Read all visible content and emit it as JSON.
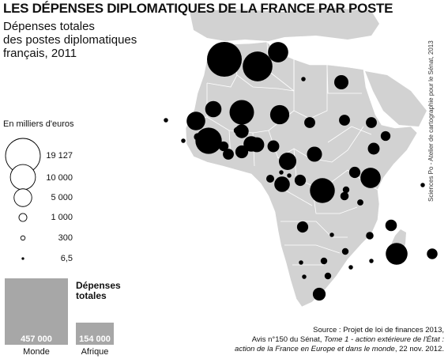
{
  "title": "LES DÉPENSES DIPLOMATIQUES DE LA FRANCE PAR POSTE",
  "subtitle": {
    "line1": "Dépenses totales",
    "line2": "des postes diplomatiques",
    "line3": "français,",
    "year": "2011"
  },
  "legend": {
    "unit_label": "En milliers d'euros",
    "items": [
      {
        "value": 19127,
        "label": "19 127"
      },
      {
        "value": 10000,
        "label": "10 000"
      },
      {
        "value": 5000,
        "label": "5 000"
      },
      {
        "value": 1000,
        "label": "1 000"
      },
      {
        "value": 300,
        "label": "300"
      },
      {
        "value": 6.5,
        "label": "6,5"
      }
    ]
  },
  "totals": {
    "heading_line1": "Dépenses",
    "heading_line2": "totales",
    "bars": [
      {
        "category": "Monde",
        "value": 457000,
        "label": "457 000"
      },
      {
        "category": "Afrique",
        "value": 154000,
        "label": "154 000"
      }
    ]
  },
  "credit": "Sciences Po - Atelier de cartographie pour le Sénat, 2013",
  "source": {
    "line1": "Source : Projet de loi de finances 2013,",
    "line2_plain": "Avis n°150 du Sénat, ",
    "line2_italic": "Tome 1 - action extérieure de l'État :",
    "line3_italic": "action de la France en Europe et dans le monde",
    "line3_plain": ", 22 nov. 2012."
  },
  "colors": {
    "land": "#d2d2d2",
    "borders": "#ffffff",
    "circles": "#000000",
    "bars": "#a7a7a7"
  },
  "map_symbols": [
    {
      "value": 19127
    },
    {
      "value": 14000
    },
    {
      "value": 6500
    },
    {
      "value": 300
    },
    {
      "value": 3200
    },
    {
      "value": 300
    },
    {
      "value": 4200
    },
    {
      "value": 9500
    },
    {
      "value": 5500
    },
    {
      "value": 3000
    },
    {
      "value": 5800
    },
    {
      "value": 850
    },
    {
      "value": 300
    },
    {
      "value": 11000
    },
    {
      "value": 3800
    },
    {
      "value": 700
    },
    {
      "value": 1900
    },
    {
      "value": 2600
    },
    {
      "value": 3500
    },
    {
      "value": 2200
    },
    {
      "value": 1900
    },
    {
      "value": 1900
    },
    {
      "value": 1900
    },
    {
      "value": 1500
    },
    {
      "value": 2200
    },
    {
      "value": 3600
    },
    {
      "value": 4800
    },
    {
      "value": 1000
    },
    {
      "value": 300
    },
    {
      "value": 300
    },
    {
      "value": 3800
    },
    {
      "value": 9800
    },
    {
      "value": 2000
    },
    {
      "value": 1100
    },
    {
      "value": 2000
    },
    {
      "value": 700
    },
    {
      "value": 6500
    },
    {
      "value": 600
    },
    {
      "value": 300
    },
    {
      "value": 2000
    },
    {
      "value": 300
    },
    {
      "value": 2100
    },
    {
      "value": 900
    },
    {
      "value": 700
    },
    {
      "value": 7500
    },
    {
      "value": 1800
    },
    {
      "value": 300
    },
    {
      "value": 700
    },
    {
      "value": 300
    },
    {
      "value": 300
    },
    {
      "value": 700
    },
    {
      "value": 300
    },
    {
      "value": 2600
    },
    {
      "value": 1500
    }
  ]
}
